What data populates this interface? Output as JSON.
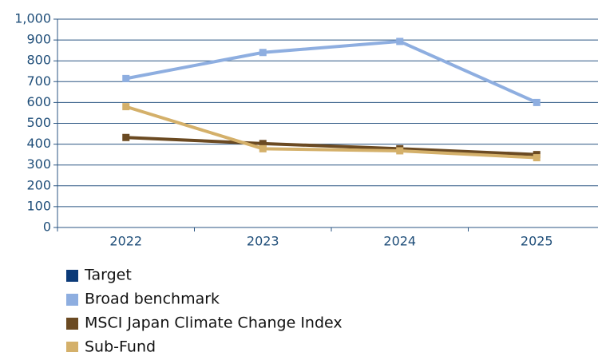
{
  "chart_data": {
    "type": "line",
    "categories": [
      "2022",
      "2023",
      "2024",
      "2025"
    ],
    "series": [
      {
        "name": "Target",
        "color": "#0b3a78",
        "values": [
          null,
          null,
          null,
          null
        ]
      },
      {
        "name": "Broad benchmark",
        "color": "#8eaee0",
        "values": [
          715,
          840,
          893,
          600
        ]
      },
      {
        "name": "MSCI Japan Climate Change Index",
        "color": "#6b4a22",
        "values": [
          432,
          403,
          378,
          350
        ]
      },
      {
        "name": "Sub-Fund",
        "color": "#d4b06a",
        "values": [
          580,
          378,
          368,
          335
        ]
      }
    ],
    "ylim": [
      0,
      1000
    ],
    "yticks": [
      0,
      100,
      200,
      300,
      400,
      500,
      600,
      700,
      800,
      900,
      {
        "value": 1000,
        "label": "1,000"
      }
    ],
    "grid": true
  }
}
